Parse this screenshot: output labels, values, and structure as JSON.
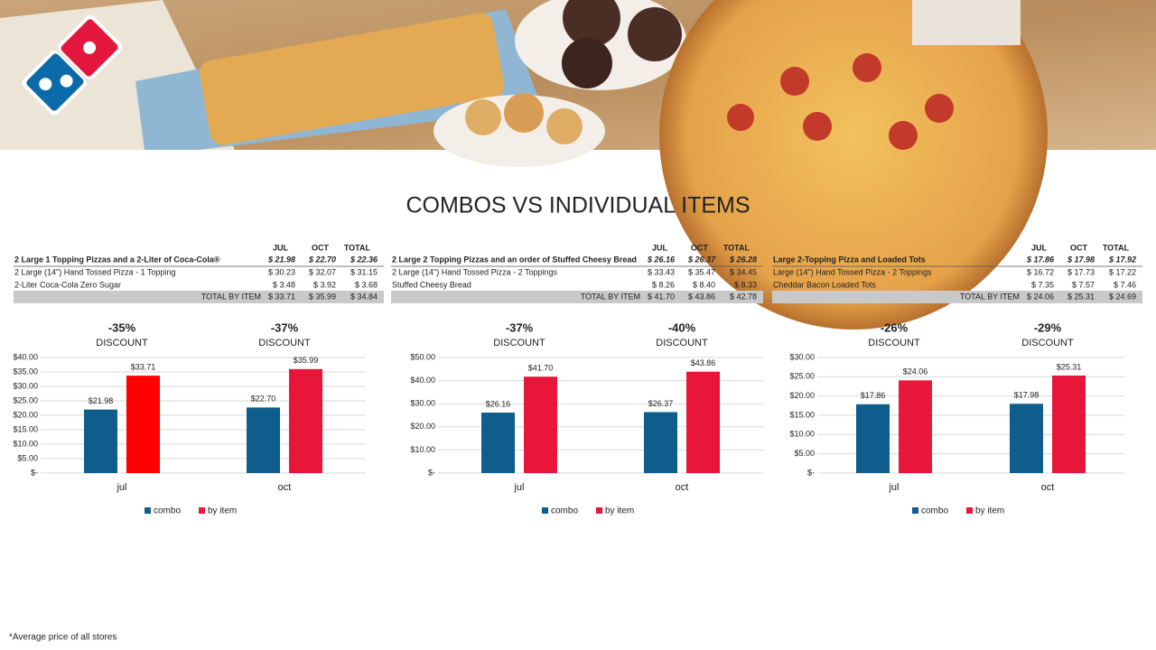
{
  "title": "COMBOS VS INDIVIDUAL ITEMS",
  "footnote": "*Average price of all stores",
  "tables": [
    {
      "columns": [
        "JUL",
        "OCT",
        "TOTAL"
      ],
      "combo": {
        "name": "2 Large 1 Topping Pizzas and a 2-Liter of Coca-Cola®",
        "values": [
          "$ 21.98",
          "$ 22.70",
          "$ 22.36"
        ]
      },
      "items": [
        {
          "name": "2 Large (14\") Hand Tossed Pizza - 1 Topping",
          "values": [
            "$ 30.23",
            "$ 32.07",
            "$ 31.15"
          ]
        },
        {
          "name": "2-Liter Coca-Cola Zero Sugar",
          "values": [
            "$ 3.48",
            "$ 3.92",
            "$ 3.68"
          ]
        }
      ],
      "total": {
        "label": "TOTAL BY ITEM",
        "values": [
          "$ 33.71",
          "$ 35.99",
          "$ 34.84"
        ]
      }
    },
    {
      "columns": [
        "JUL",
        "OCT",
        "TOTAL"
      ],
      "combo": {
        "name": "2 Large 2 Topping Pizzas and an order of Stuffed Cheesy Bread",
        "values": [
          "$ 26.16",
          "$ 26.37",
          "$ 26.28"
        ]
      },
      "items": [
        {
          "name": "2 Large (14\") Hand Tossed Pizza - 2 Toppings",
          "values": [
            "$ 33.43",
            "$ 35.47",
            "$ 34.45"
          ]
        },
        {
          "name": "Stuffed Cheesy Bread",
          "values": [
            "$ 8.26",
            "$ 8.40",
            "$ 8.33"
          ]
        }
      ],
      "total": {
        "label": "TOTAL BY ITEM",
        "values": [
          "$ 41.70",
          "$ 43.86",
          "$ 42.78"
        ]
      }
    },
    {
      "columns": [
        "JUL",
        "OCT",
        "TOTAL"
      ],
      "combo": {
        "name": "Large 2-Topping Pizza and Loaded Tots",
        "values": [
          "$ 17.86",
          "$ 17.98",
          "$ 17.92"
        ]
      },
      "items": [
        {
          "name": "Large (14\") Hand Tossed Pizza - 2 Toppings",
          "values": [
            "$ 16.72",
            "$ 17.73",
            "$ 17.22"
          ]
        },
        {
          "name": "Cheddar Bacon Loaded Tots",
          "values": [
            "$ 7.35",
            "$ 7.57",
            "$ 7.46"
          ]
        }
      ],
      "total": {
        "label": "TOTAL BY ITEM",
        "values": [
          "$ 24.06",
          "$ 25.31",
          "$ 24.69"
        ]
      }
    }
  ],
  "chart_data": [
    {
      "type": "bar",
      "categories": [
        "jul",
        "oct"
      ],
      "annotations": [
        {
          "text": "-35%",
          "sub": "DISCOUNT"
        },
        {
          "text": "-37%",
          "sub": "DISCOUNT"
        }
      ],
      "series": [
        {
          "name": "combo",
          "color": "#0f5d8c",
          "values": [
            21.98,
            22.7
          ],
          "value_labels": [
            "$21.98",
            "$22.70"
          ]
        },
        {
          "name": "by item",
          "color": "#e8173a",
          "colors": [
            "#ff0000",
            "#e8173a"
          ],
          "values": [
            33.71,
            35.99
          ],
          "value_labels": [
            "$33.71",
            "$35.99"
          ]
        }
      ],
      "ylim": [
        0,
        40
      ],
      "yticks": [
        {
          "value": 0,
          "label": "$-"
        },
        {
          "value": 5,
          "label": "$5.00"
        },
        {
          "value": 10,
          "label": "$10.00"
        },
        {
          "value": 15,
          "label": "$15.00"
        },
        {
          "value": 20,
          "label": "$20.00"
        },
        {
          "value": 25,
          "label": "$25.00"
        },
        {
          "value": 30,
          "label": "$30.00"
        },
        {
          "value": 35,
          "label": "$35.00"
        },
        {
          "value": 40,
          "label": "$40.00"
        }
      ],
      "grid": true,
      "legend": "bottom"
    },
    {
      "type": "bar",
      "categories": [
        "jul",
        "oct"
      ],
      "annotations": [
        {
          "text": "-37%",
          "sub": "DISCOUNT"
        },
        {
          "text": "-40%",
          "sub": "DISCOUNT"
        }
      ],
      "series": [
        {
          "name": "combo",
          "color": "#0f5d8c",
          "values": [
            26.16,
            26.37
          ],
          "value_labels": [
            "$26.16",
            "$26.37"
          ]
        },
        {
          "name": "by item",
          "color": "#e8173a",
          "values": [
            41.7,
            43.86
          ],
          "value_labels": [
            "$41.70",
            "$43.86"
          ]
        }
      ],
      "ylim": [
        0,
        50
      ],
      "yticks": [
        {
          "value": 0,
          "label": "$-"
        },
        {
          "value": 10,
          "label": "$10.00"
        },
        {
          "value": 20,
          "label": "$20.00"
        },
        {
          "value": 30,
          "label": "$30.00"
        },
        {
          "value": 40,
          "label": "$40.00"
        },
        {
          "value": 50,
          "label": "$50.00"
        }
      ],
      "grid": true,
      "legend": "bottom"
    },
    {
      "type": "bar",
      "categories": [
        "jul",
        "oct"
      ],
      "annotations": [
        {
          "text": "-26%",
          "sub": "DISCOUNT"
        },
        {
          "text": "-29%",
          "sub": "DISCOUNT"
        }
      ],
      "series": [
        {
          "name": "combo",
          "color": "#0f5d8c",
          "values": [
            17.86,
            17.98
          ],
          "value_labels": [
            "$17.86",
            "$17.98"
          ]
        },
        {
          "name": "by item",
          "color": "#e8173a",
          "values": [
            24.06,
            25.31
          ],
          "value_labels": [
            "$24.06",
            "$25.31"
          ]
        }
      ],
      "ylim": [
        0,
        30
      ],
      "yticks": [
        {
          "value": 0,
          "label": "$-"
        },
        {
          "value": 5,
          "label": "$5.00"
        },
        {
          "value": 10,
          "label": "$10.00"
        },
        {
          "value": 15,
          "label": "$15.00"
        },
        {
          "value": 20,
          "label": "$20.00"
        },
        {
          "value": 25,
          "label": "$25.00"
        },
        {
          "value": 30,
          "label": "$30.00"
        }
      ],
      "grid": true,
      "legend": "bottom"
    }
  ]
}
